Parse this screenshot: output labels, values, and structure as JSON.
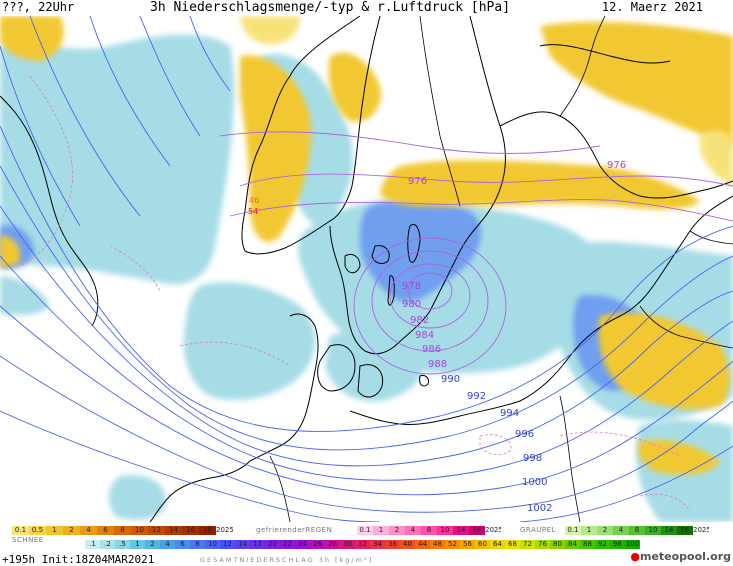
{
  "header": {
    "left": "???, 22Uhr",
    "center": "3h Niederschlagsmenge/-typ & r.Luftdruck [hPa]",
    "right": "12. Maerz 2021"
  },
  "map_labels": {
    "isobars": [
      {
        "value": "976",
        "kind": "violet"
      },
      {
        "value": "976",
        "kind": "violet"
      },
      {
        "value": "978",
        "kind": "violet"
      },
      {
        "value": "980",
        "kind": "violet"
      },
      {
        "value": "982",
        "kind": "violet"
      },
      {
        "value": "984",
        "kind": "violet"
      },
      {
        "value": "986",
        "kind": "violet"
      },
      {
        "value": "988",
        "kind": "violet"
      },
      {
        "value": "990",
        "kind": "blue"
      },
      {
        "value": "992",
        "kind": "blue"
      },
      {
        "value": "994",
        "kind": "blue"
      },
      {
        "value": "996",
        "kind": "blue"
      },
      {
        "value": "998",
        "kind": "blue"
      },
      {
        "value": "1000",
        "kind": "blue"
      },
      {
        "value": "1002",
        "kind": "blue"
      }
    ],
    "red_labels": [
      "46",
      "54"
    ]
  },
  "legend": {
    "schnee_label": "SCHNEE",
    "regen_label": "gefrierenderREGEN",
    "graupel_label": "GRAUPEL",
    "gesamt_label": "GESAMTNIEDERSCHLAG 3h [kg/m²]",
    "snow_scale": [
      "0.1",
      "0.5",
      "1",
      "2",
      "4",
      "6",
      "8",
      "10",
      "12",
      "14",
      "16",
      "18",
      "2025+"
    ],
    "freezing_rain_scale": [
      "0.1",
      "1",
      "2",
      "4",
      "8",
      "10",
      "14",
      "16",
      "2025+"
    ],
    "graupel_scale": [
      "0.1",
      "1",
      "2",
      "4",
      "8",
      "10",
      "14",
      "16",
      "2025+"
    ],
    "total_scale": [
      ".1",
      ".2",
      ".5",
      "1",
      "2",
      "4",
      "6",
      "8",
      "10",
      "12",
      "14",
      "17",
      "20",
      "22",
      "24",
      "26",
      "28",
      "30",
      "32",
      "34",
      "36",
      "40",
      "44",
      "48",
      "52",
      "56",
      "60",
      "64",
      "68",
      "72",
      "76",
      "80",
      "84",
      "88",
      "92",
      "96",
      "100"
    ],
    "colors": {
      "snow": [
        "#f7e47a",
        "#f5d64a",
        "#f2c52a",
        "#eeb020",
        "#e89a18",
        "#e08010",
        "#d66a0a",
        "#cc5a08",
        "#c04a06",
        "#b03a04",
        "#a02e02",
        "#902200",
        "#ffffff"
      ],
      "freezing_rain": [
        "#ffd0e8",
        "#ffb0d8",
        "#ff90c8",
        "#ff70b8",
        "#ff50a8",
        "#ff3098",
        "#e81088",
        "#c80070",
        "#ffffff"
      ],
      "graupel": [
        "#d8f0b0",
        "#b8e890",
        "#98e070",
        "#78d050",
        "#58c030",
        "#38b020",
        "#209010",
        "#107000",
        "#ffffff"
      ],
      "total": [
        "#cceef0",
        "#aae2ea",
        "#88d6e4",
        "#66c8de",
        "#55b4e0",
        "#4aa0e4",
        "#4a8cec",
        "#4a78f0",
        "#4a64f4",
        "#4a50f8",
        "#5a40f0",
        "#6a30e8",
        "#7a22e0",
        "#8a18d8",
        "#9a10d0",
        "#b010c0",
        "#c81098",
        "#d81878",
        "#e02060",
        "#e83048",
        "#ee4030",
        "#f25020",
        "#f46414",
        "#f67a0a",
        "#f89004",
        "#f8a800",
        "#f4c000",
        "#eed400",
        "#e4e400",
        "#c8e400",
        "#a8dc00",
        "#88d400",
        "#68cc00",
        "#48c400",
        "#30bc00",
        "#20b400",
        "#10ac00"
      ]
    }
  },
  "footer": {
    "left": "+195h Init:18Z04MAR2021",
    "logo_main": "meteopool",
    "logo_tld": ".org"
  }
}
